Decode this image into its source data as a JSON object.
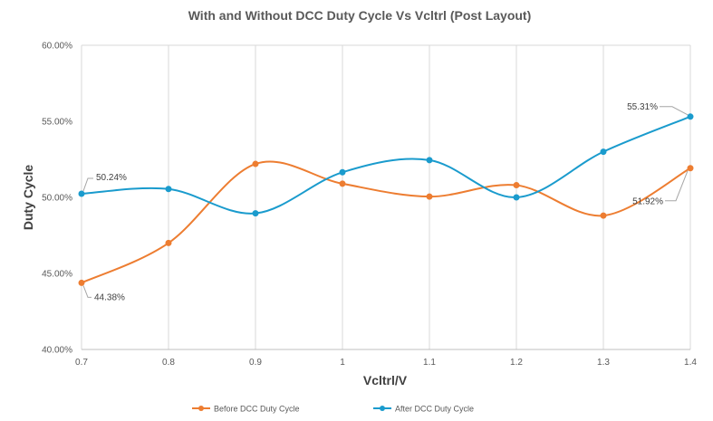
{
  "chart_data": {
    "type": "line",
    "title": "With and Without DCC Duty Cycle Vs Vcltrl (Post Layout)",
    "xlabel": "Vcltrl/V",
    "ylabel": "Duty Cycle",
    "x": [
      0.7,
      0.8,
      0.9,
      1.0,
      1.1,
      1.2,
      1.3,
      1.4
    ],
    "x_tick_labels": [
      "0.7",
      "0.8",
      "0.9",
      "1",
      "1.1",
      "1.2",
      "1.3",
      "1.4"
    ],
    "ylim": [
      40,
      60
    ],
    "y_ticks": [
      40,
      45,
      50,
      55,
      60
    ],
    "y_tick_labels": [
      "40.00%",
      "45.00%",
      "50.00%",
      "55.00%",
      "60.00%"
    ],
    "grid": "vertical",
    "legend": "bottom",
    "smooth": true,
    "series": [
      {
        "name": "Before DCC Duty Cycle",
        "color": "#ED7D31",
        "values": [
          44.38,
          47.0,
          52.2,
          50.9,
          50.05,
          50.8,
          48.8,
          51.92
        ],
        "labels": [
          {
            "index": 0,
            "text": "44.38%"
          },
          {
            "index": 7,
            "text": "51.92%"
          }
        ]
      },
      {
        "name": "After DCC Duty Cycle",
        "color": "#1A9BCD",
        "values": [
          50.24,
          50.55,
          48.95,
          51.65,
          52.45,
          50.0,
          53.0,
          55.31
        ],
        "labels": [
          {
            "index": 0,
            "text": "50.24%"
          },
          {
            "index": 7,
            "text": "55.31%"
          }
        ]
      }
    ]
  }
}
